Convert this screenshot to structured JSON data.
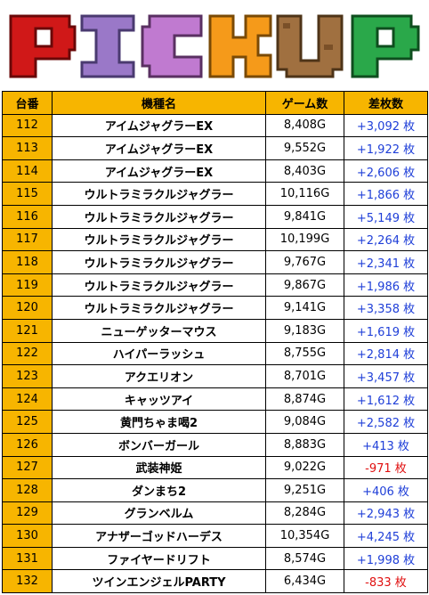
{
  "header": {
    "banner_text": "PICKUP",
    "columns": [
      "台番",
      "機種名",
      "ゲーム数",
      "差枚数"
    ]
  },
  "colors": {
    "header_bg": "#f7b500",
    "number_bg": "#f7b500",
    "positive": "#1f3fd8",
    "negative": "#e01010",
    "letter_p": "#d01818",
    "letter_i": "#9a78c8",
    "letter_c": "#c07ad0",
    "letter_k": "#f59a1a",
    "letter_u": "#a07040",
    "letter_p2": "#2aa84a"
  },
  "rows": [
    {
      "no": "112",
      "name": "アイムジャグラーEX",
      "games": "8,408G",
      "diff": "+3,092 枚",
      "sign": "pos"
    },
    {
      "no": "113",
      "name": "アイムジャグラーEX",
      "games": "9,552G",
      "diff": "+1,922 枚",
      "sign": "pos"
    },
    {
      "no": "114",
      "name": "アイムジャグラーEX",
      "games": "8,403G",
      "diff": "+2,606 枚",
      "sign": "pos"
    },
    {
      "no": "115",
      "name": "ウルトラミラクルジャグラー",
      "games": "10,116G",
      "diff": "+1,866 枚",
      "sign": "pos"
    },
    {
      "no": "116",
      "name": "ウルトラミラクルジャグラー",
      "games": "9,841G",
      "diff": "+5,149 枚",
      "sign": "pos"
    },
    {
      "no": "117",
      "name": "ウルトラミラクルジャグラー",
      "games": "10,199G",
      "diff": "+2,264 枚",
      "sign": "pos"
    },
    {
      "no": "118",
      "name": "ウルトラミラクルジャグラー",
      "games": "9,767G",
      "diff": "+2,341 枚",
      "sign": "pos"
    },
    {
      "no": "119",
      "name": "ウルトラミラクルジャグラー",
      "games": "9,867G",
      "diff": "+1,986 枚",
      "sign": "pos"
    },
    {
      "no": "120",
      "name": "ウルトラミラクルジャグラー",
      "games": "9,141G",
      "diff": "+3,358 枚",
      "sign": "pos"
    },
    {
      "no": "121",
      "name": "ニューゲッターマウス",
      "games": "9,183G",
      "diff": "+1,619 枚",
      "sign": "pos"
    },
    {
      "no": "122",
      "name": "ハイパーラッシュ",
      "games": "8,755G",
      "diff": "+2,814 枚",
      "sign": "pos"
    },
    {
      "no": "123",
      "name": "アクエリオン",
      "games": "8,701G",
      "diff": "+3,457 枚",
      "sign": "pos"
    },
    {
      "no": "124",
      "name": "キャッツアイ",
      "games": "8,874G",
      "diff": "+1,612 枚",
      "sign": "pos"
    },
    {
      "no": "125",
      "name": "黄門ちゃま喝2",
      "games": "9,084G",
      "diff": "+2,582 枚",
      "sign": "pos"
    },
    {
      "no": "126",
      "name": "ボンバーガール",
      "games": "8,883G",
      "diff": "+413 枚",
      "sign": "pos"
    },
    {
      "no": "127",
      "name": "武装神姫",
      "games": "9,022G",
      "diff": "-971 枚",
      "sign": "neg"
    },
    {
      "no": "128",
      "name": "ダンまち2",
      "games": "9,251G",
      "diff": "+406 枚",
      "sign": "pos"
    },
    {
      "no": "129",
      "name": "グランベルム",
      "games": "8,284G",
      "diff": "+2,943 枚",
      "sign": "pos"
    },
    {
      "no": "130",
      "name": "アナザーゴッドハーデス",
      "games": "10,354G",
      "diff": "+4,245 枚",
      "sign": "pos"
    },
    {
      "no": "131",
      "name": "ファイヤードリフト",
      "games": "8,574G",
      "diff": "+1,998 枚",
      "sign": "pos"
    },
    {
      "no": "132",
      "name": "ツインエンジェルPARTY",
      "games": "6,434G",
      "diff": "-833 枚",
      "sign": "neg"
    }
  ]
}
